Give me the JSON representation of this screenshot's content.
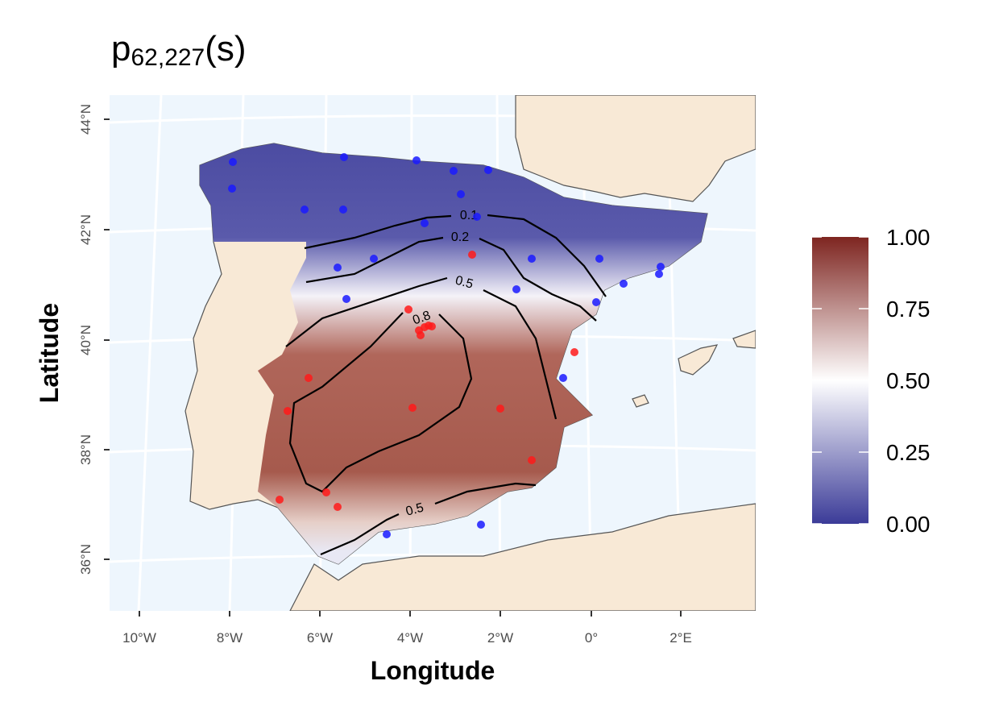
{
  "title": {
    "base": "p",
    "subscript": "62,227",
    "suffix": "(s)"
  },
  "x_axis": {
    "label": "Longitude",
    "ticks": [
      "10°W",
      "8°W",
      "6°W",
      "4°W",
      "2°W",
      "0°",
      "2°E"
    ]
  },
  "y_axis": {
    "label": "Latitude",
    "ticks": [
      "36°N",
      "38°N",
      "40°N",
      "42°N",
      "44°N"
    ]
  },
  "legend": {
    "ticks": [
      {
        "value": 0,
        "label": "0.00"
      },
      {
        "value": 0.25,
        "label": "0.25"
      },
      {
        "value": 0.5,
        "label": "0.50"
      },
      {
        "value": 0.75,
        "label": "0.75"
      },
      {
        "value": 1,
        "label": "1.00"
      }
    ]
  },
  "contour_labels": [
    "0.1",
    "0.2",
    "0.5",
    "0.8",
    "0.5"
  ]
}
